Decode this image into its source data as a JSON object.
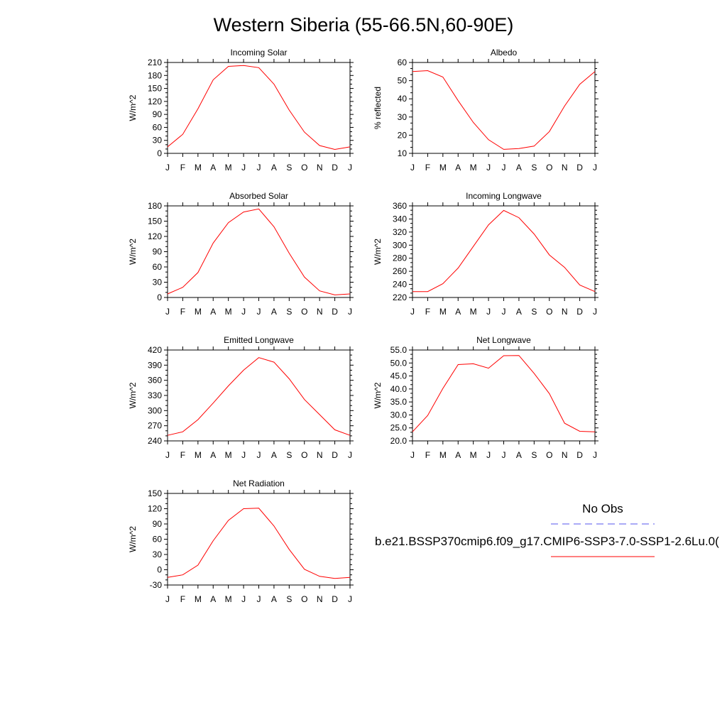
{
  "title": "Western Siberia (55-66.5N,60-90E)",
  "months": [
    "J",
    "F",
    "M",
    "A",
    "M",
    "J",
    "J",
    "A",
    "S",
    "O",
    "N",
    "D",
    "J"
  ],
  "colors": {
    "model_line": "#ff0000",
    "obs_line": "#5555ee",
    "axis": "#000000"
  },
  "legend": {
    "obs_label": "No Obs",
    "model_label": "b.e21.BSSP370cmip6.f09_g17.CMIP6-SSP3-7.0-SSP1-2.6Lu.0("
  },
  "chart_data": [
    {
      "type": "line",
      "title": "Incoming Solar",
      "ylabel": "W/m^2",
      "ylim": [
        0,
        210
      ],
      "yticks": [
        0,
        30,
        60,
        90,
        120,
        150,
        180,
        210
      ],
      "ytick_labels": [
        "0",
        "30",
        "60",
        "90",
        "120",
        "150",
        "180",
        "210"
      ],
      "categories": [
        "J",
        "F",
        "M",
        "A",
        "M",
        "J",
        "J",
        "A",
        "S",
        "O",
        "N",
        "D",
        "J"
      ],
      "series": [
        {
          "values": [
            15,
            44,
            103,
            170,
            201,
            203,
            198,
            160,
            100,
            49,
            18,
            9,
            15
          ]
        }
      ]
    },
    {
      "type": "line",
      "title": "Albedo",
      "ylabel": "% reflected",
      "ylim": [
        10,
        60
      ],
      "yticks": [
        10,
        20,
        30,
        40,
        50,
        60
      ],
      "ytick_labels": [
        "10",
        "20",
        "30",
        "40",
        "50",
        "60"
      ],
      "categories": [
        "J",
        "F",
        "M",
        "A",
        "M",
        "J",
        "J",
        "A",
        "S",
        "O",
        "N",
        "D",
        "J"
      ],
      "series": [
        {
          "values": [
            55,
            55.5,
            52,
            39,
            27,
            17.5,
            12.2,
            12.6,
            14,
            22,
            36,
            48,
            55
          ]
        }
      ]
    },
    {
      "type": "line",
      "title": "Absorbed Solar",
      "ylabel": "W/m^2",
      "ylim": [
        0,
        180
      ],
      "yticks": [
        0,
        30,
        60,
        90,
        120,
        150,
        180
      ],
      "ytick_labels": [
        "0",
        "30",
        "60",
        "90",
        "120",
        "150",
        "180"
      ],
      "categories": [
        "J",
        "F",
        "M",
        "A",
        "M",
        "J",
        "J",
        "A",
        "S",
        "O",
        "N",
        "D",
        "J"
      ],
      "series": [
        {
          "values": [
            7,
            20,
            49,
            107,
            147,
            168,
            174,
            139,
            87,
            40,
            13,
            5,
            7
          ]
        }
      ]
    },
    {
      "type": "line",
      "title": "Incoming Longwave",
      "ylabel": "W/m^2",
      "ylim": [
        220,
        360
      ],
      "yticks": [
        220,
        240,
        260,
        280,
        300,
        320,
        340,
        360
      ],
      "ytick_labels": [
        "220",
        "240",
        "260",
        "280",
        "300",
        "320",
        "340",
        "360"
      ],
      "categories": [
        "J",
        "F",
        "M",
        "A",
        "M",
        "J",
        "J",
        "A",
        "S",
        "O",
        "N",
        "D",
        "J"
      ],
      "series": [
        {
          "values": [
            229,
            229,
            241,
            265,
            298,
            331,
            353,
            342,
            317,
            285,
            266,
            239,
            229
          ]
        }
      ]
    },
    {
      "type": "line",
      "title": "Emitted Longwave",
      "ylabel": "W/m^2",
      "ylim": [
        240,
        420
      ],
      "yticks": [
        240,
        270,
        300,
        330,
        360,
        390,
        420
      ],
      "ytick_labels": [
        "240",
        "270",
        "300",
        "330",
        "360",
        "390",
        "420"
      ],
      "categories": [
        "J",
        "F",
        "M",
        "A",
        "M",
        "J",
        "J",
        "A",
        "S",
        "O",
        "N",
        "D",
        "J"
      ],
      "series": [
        {
          "values": [
            251,
            258,
            282,
            315,
            349,
            380,
            405,
            396,
            363,
            322,
            292,
            262,
            251
          ]
        }
      ]
    },
    {
      "type": "line",
      "title": "Net Longwave",
      "ylabel": "W/m^2",
      "ylim": [
        20,
        55
      ],
      "yticks": [
        20,
        25,
        30,
        35,
        40,
        45,
        50,
        55
      ],
      "ytick_labels": [
        "20.0",
        "25.0",
        "30.0",
        "35.0",
        "40.0",
        "45.0",
        "50.0",
        "55.0"
      ],
      "categories": [
        "J",
        "F",
        "M",
        "A",
        "M",
        "J",
        "J",
        "A",
        "S",
        "O",
        "N",
        "D",
        "J"
      ],
      "series": [
        {
          "values": [
            23.5,
            29.8,
            40.2,
            49.4,
            49.7,
            48,
            52.8,
            52.9,
            46,
            38.2,
            26.8,
            23.7,
            23.5
          ]
        }
      ]
    },
    {
      "type": "line",
      "title": "Net Radiation",
      "ylabel": "W/m^2",
      "ylim": [
        -30,
        150
      ],
      "yticks": [
        -30,
        0,
        30,
        60,
        90,
        120,
        150
      ],
      "ytick_labels": [
        "-30",
        "0",
        "30",
        "60",
        "90",
        "120",
        "150"
      ],
      "categories": [
        "J",
        "F",
        "M",
        "A",
        "M",
        "J",
        "J",
        "A",
        "S",
        "O",
        "N",
        "D",
        "J"
      ],
      "series": [
        {
          "values": [
            -15,
            -10,
            9,
            57,
            97,
            120,
            121,
            86,
            40,
            1,
            -13,
            -17,
            -15
          ]
        }
      ]
    }
  ]
}
